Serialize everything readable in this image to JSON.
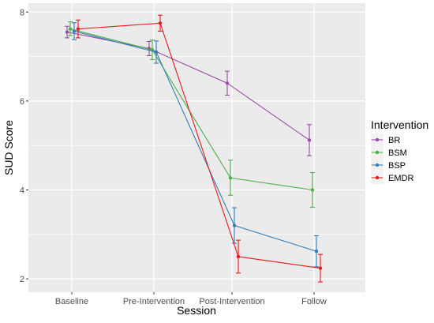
{
  "chart_data": {
    "type": "line",
    "xlabel": "Session",
    "ylabel": "SUD Score",
    "categories": [
      "Baseline",
      "Pre-Intervention",
      "Post-Intervention",
      "Follow"
    ],
    "y_ticks": [
      2,
      4,
      6,
      8
    ],
    "ylim": [
      1.7,
      8.2
    ],
    "grid": true,
    "legend": {
      "title": "Intervention",
      "placement": "right"
    },
    "background_color": "#ebebeb",
    "grid_color": "#ffffff",
    "series": [
      {
        "name": "BR",
        "color": "#984ea3",
        "values": [
          7.55,
          7.18,
          6.4,
          5.12
        ],
        "error_low": [
          7.42,
          7.02,
          6.13,
          4.77
        ],
        "error_high": [
          7.68,
          7.34,
          6.67,
          5.47
        ]
      },
      {
        "name": "BSM",
        "color": "#4daf4a",
        "values": [
          7.62,
          7.15,
          4.27,
          4.0
        ],
        "error_low": [
          7.47,
          6.93,
          3.88,
          3.61
        ],
        "error_high": [
          7.78,
          7.37,
          4.67,
          4.39
        ]
      },
      {
        "name": "BSP",
        "color": "#377eb8",
        "values": [
          7.57,
          7.1,
          3.2,
          2.62
        ],
        "error_low": [
          7.38,
          6.85,
          2.8,
          2.27
        ],
        "error_high": [
          7.76,
          7.35,
          3.6,
          2.97
        ]
      },
      {
        "name": "EMDR",
        "color": "#e41a1c",
        "values": [
          7.62,
          7.75,
          2.5,
          2.24
        ],
        "error_low": [
          7.42,
          7.57,
          2.13,
          1.93
        ],
        "error_high": [
          7.82,
          7.93,
          2.87,
          2.55
        ]
      }
    ]
  }
}
